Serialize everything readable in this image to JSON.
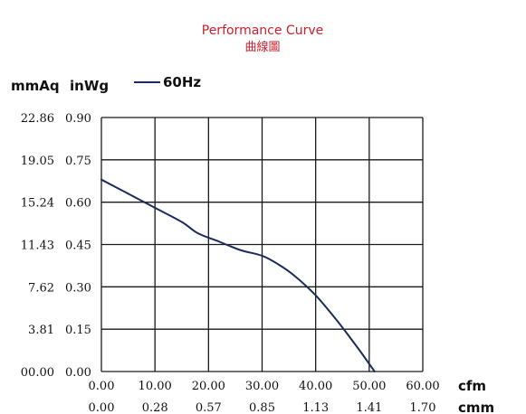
{
  "chart_data": {
    "type": "line",
    "title": "Performance Curve",
    "subtitle": "曲線圖",
    "y_units": [
      "mmAq",
      "inWg"
    ],
    "x_units": [
      "cfm",
      "cmm"
    ],
    "legend": {
      "position": "top-left",
      "entries": [
        "60Hz"
      ]
    },
    "grid": true,
    "y_ticks_mmAq": [
      "00.00",
      "3.81",
      "7.62",
      "11.43",
      "15.24",
      "19.05",
      "22.86"
    ],
    "y_ticks_inWg": [
      "0.00",
      "0.15",
      "0.30",
      "0.45",
      "0.60",
      "0.75",
      "0.90"
    ],
    "x_ticks_cfm": [
      "0.00",
      "10.00",
      "20.00",
      "30.00",
      "40.00",
      "50.00",
      "60.00"
    ],
    "x_ticks_cmm": [
      "0.00",
      "0.28",
      "0.57",
      "0.85",
      "1.13",
      "1.41",
      "1.70"
    ],
    "xlim": [
      0,
      60
    ],
    "ylim": [
      0,
      0.9
    ],
    "series": [
      {
        "name": "60Hz",
        "color": "#1b2b5a",
        "x": [
          0,
          5,
          10,
          15,
          18,
          22,
          26,
          30,
          33,
          36,
          40,
          44,
          48,
          51
        ],
        "y": [
          0.68,
          0.63,
          0.58,
          0.53,
          0.49,
          0.46,
          0.43,
          0.41,
          0.38,
          0.34,
          0.27,
          0.18,
          0.08,
          0.0
        ]
      }
    ]
  }
}
